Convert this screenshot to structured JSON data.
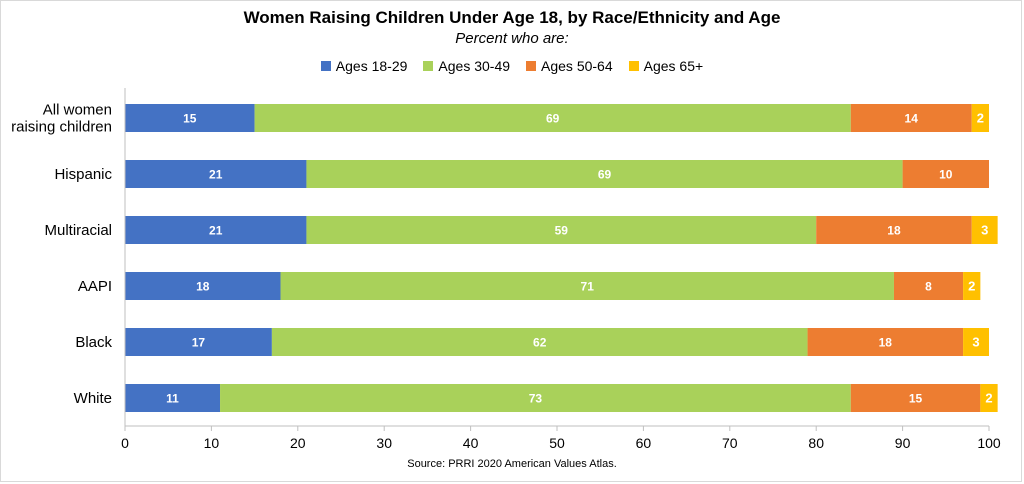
{
  "chart_data": {
    "type": "bar",
    "orientation": "horizontal",
    "stacked": true,
    "title": "Women Raising Children Under Age 18, by Race/Ethnicity and Age",
    "subtitle": "Percent who are:",
    "categories": [
      [
        "All women",
        "raising children"
      ],
      [
        "Hispanic"
      ],
      [
        "Multiracial"
      ],
      [
        "AAPI"
      ],
      [
        "Black"
      ],
      [
        "White"
      ]
    ],
    "series": [
      {
        "name": "Ages 18-29",
        "color": "#4472C4",
        "values": [
          15,
          21,
          21,
          18,
          17,
          11
        ]
      },
      {
        "name": "Ages 30-49",
        "color": "#A9D15A",
        "values": [
          69,
          69,
          59,
          71,
          62,
          73
        ]
      },
      {
        "name": "Ages 50-64",
        "color": "#ED7D31",
        "values": [
          14,
          10,
          18,
          8,
          18,
          15
        ]
      },
      {
        "name": "Ages 65+",
        "color": "#FFC000",
        "values": [
          2,
          null,
          3,
          2,
          3,
          2
        ]
      }
    ],
    "xlim": [
      0,
      100
    ],
    "xticks": [
      0,
      10,
      20,
      30,
      40,
      50,
      60,
      70,
      80,
      90,
      100
    ],
    "grid": false,
    "legend_position": "top",
    "source": "Source: PRRI 2020 American Values Atlas."
  }
}
